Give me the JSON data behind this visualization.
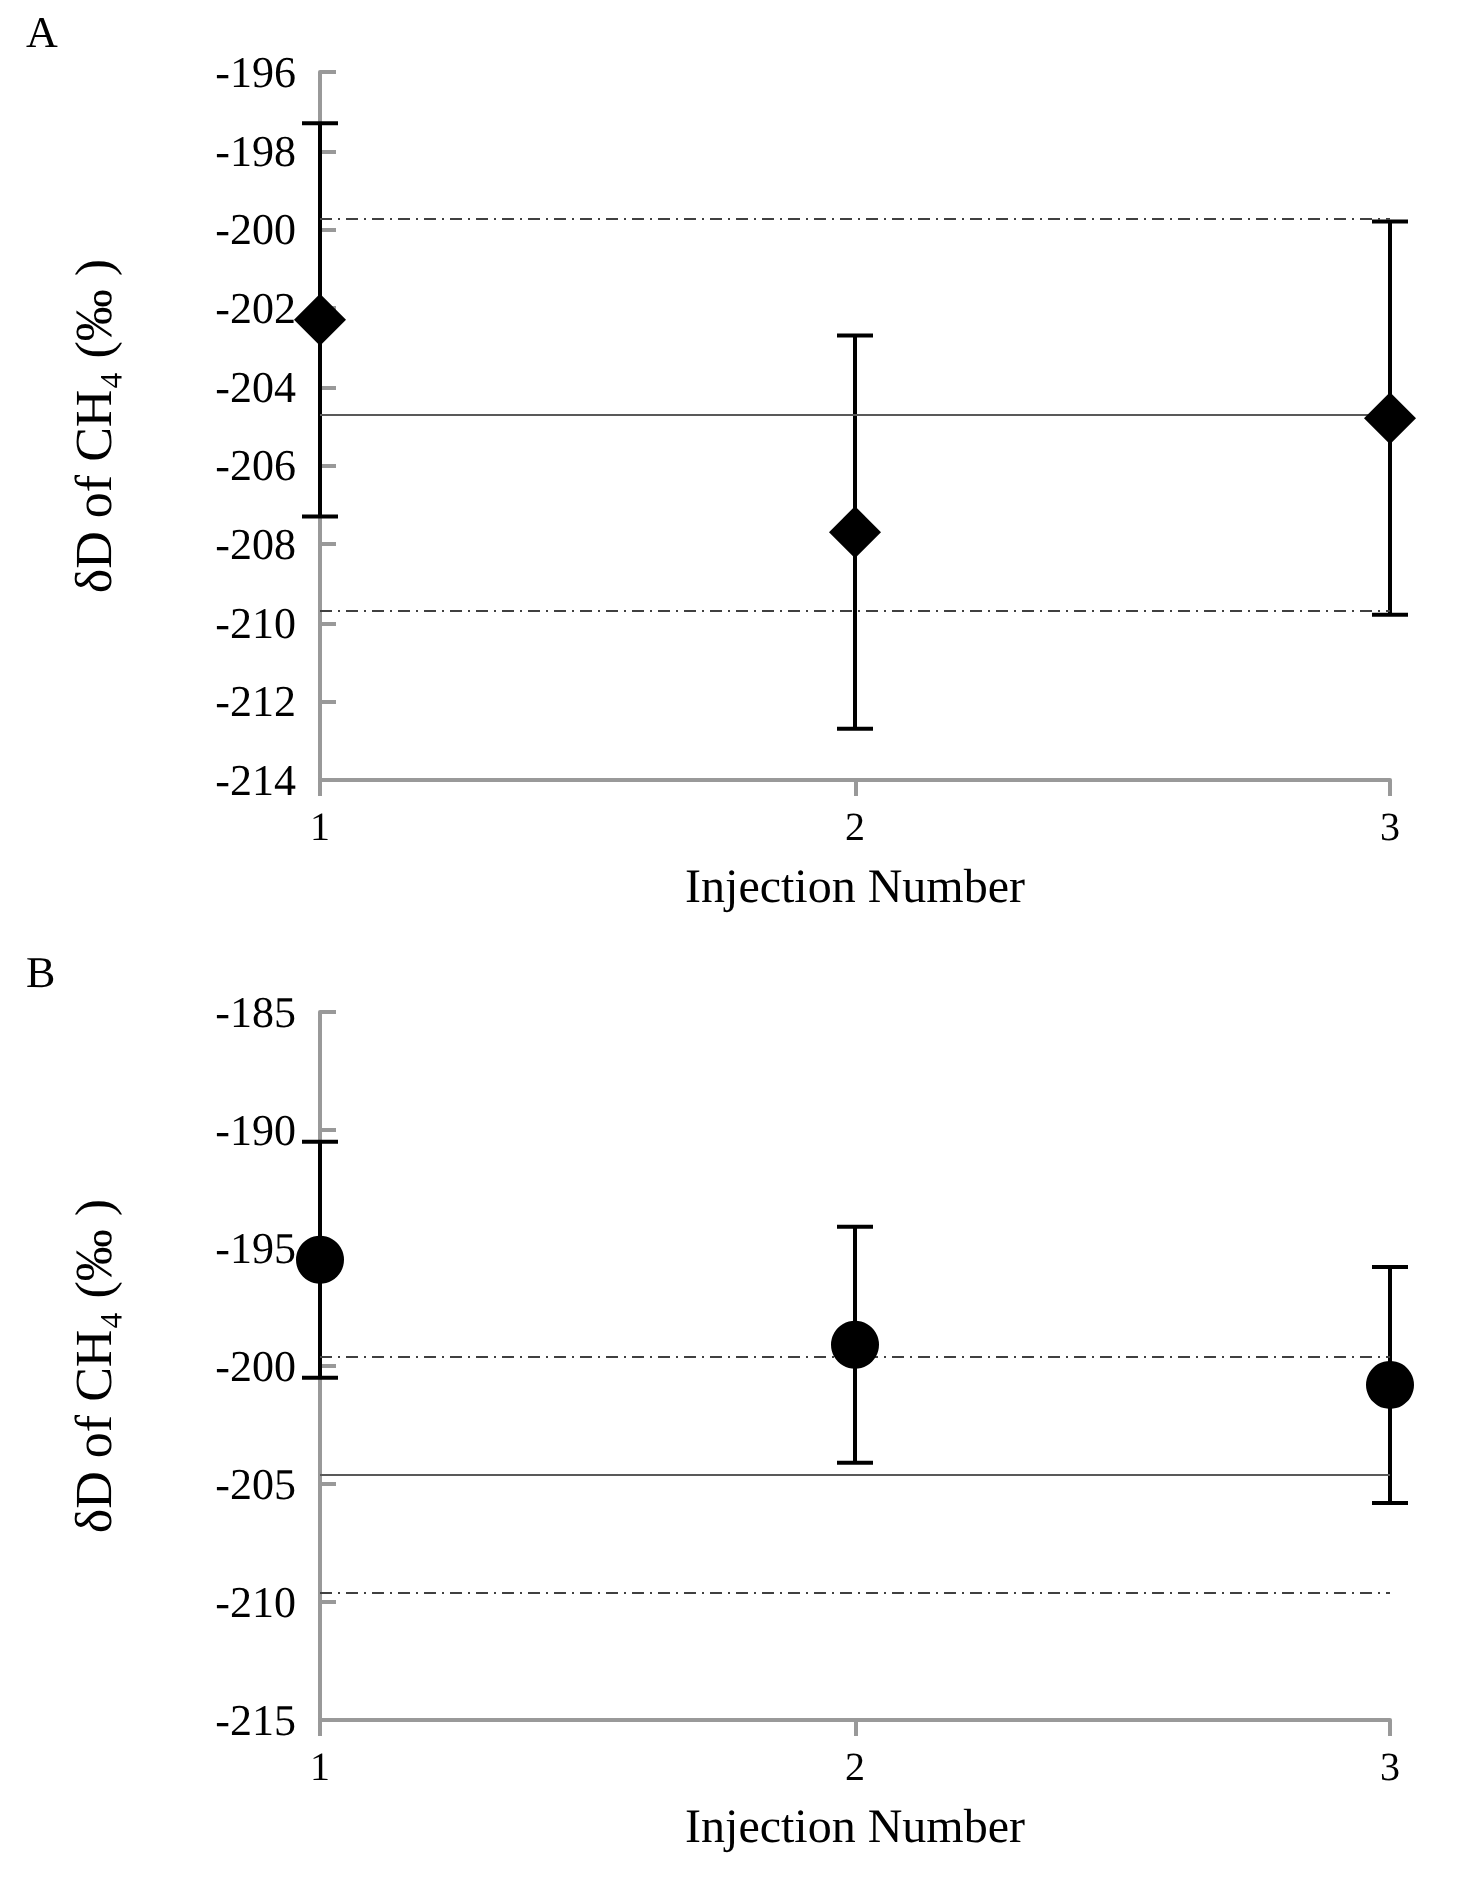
{
  "chart_data": [
    {
      "type": "scatter",
      "title": "A",
      "xlabel": "Injection Number",
      "ylabel": "δD of CH₄ (‰ )",
      "x": [
        1,
        2,
        3
      ],
      "xlim": [
        1,
        3
      ],
      "xticks": [
        1,
        2,
        3
      ],
      "ylim": [
        -214,
        -196
      ],
      "yticks": [
        -214,
        -212,
        -210,
        -208,
        -206,
        -204,
        -202,
        -200,
        -198,
        -196
      ],
      "marker": "diamond",
      "grid": false,
      "series": [
        {
          "color": "#000000",
          "values": [
            -202.3,
            -207.7,
            -204.8
          ],
          "errors": [
            5,
            5,
            5
          ]
        }
      ],
      "ref_lines": [
        {
          "axis": "y",
          "value": -199.7,
          "color": "#404040",
          "line_style": "dashed"
        },
        {
          "axis": "y",
          "value": -204.7,
          "color": "#595959",
          "line_style": "solid"
        },
        {
          "axis": "y",
          "value": -209.7,
          "color": "#404040",
          "line_style": "dashed"
        }
      ]
    },
    {
      "type": "scatter",
      "title": "B",
      "xlabel": "Injection Number",
      "ylabel": "δD of CH₄ (‰ )",
      "x": [
        1,
        2,
        3
      ],
      "xlim": [
        1,
        3
      ],
      "xticks": [
        1,
        2,
        3
      ],
      "ylim": [
        -215,
        -185
      ],
      "yticks": [
        -215,
        -210,
        -205,
        -200,
        -195,
        -190,
        -185
      ],
      "marker": "circle",
      "grid": false,
      "series": [
        {
          "color": "#000000",
          "values": [
            -195.5,
            -199.1,
            -200.8
          ],
          "errors": [
            5,
            5,
            5
          ]
        }
      ],
      "ref_lines": [
        {
          "axis": "y",
          "value": -199.6,
          "color": "#404040",
          "line_style": "dashed"
        },
        {
          "axis": "y",
          "value": -204.6,
          "color": "#595959",
          "line_style": "solid"
        },
        {
          "axis": "y",
          "value": -209.6,
          "color": "#404040",
          "line_style": "dashed"
        }
      ]
    }
  ]
}
